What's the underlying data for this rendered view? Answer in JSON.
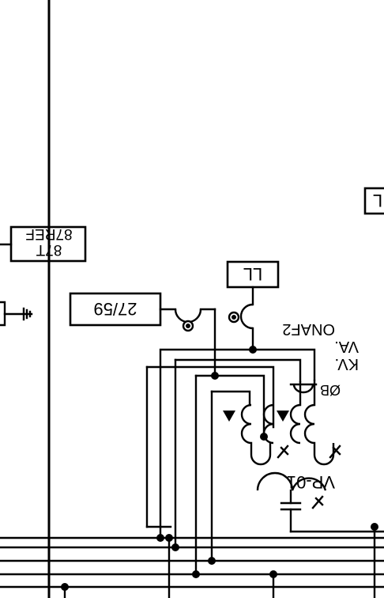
{
  "labels": {
    "relay_87t": "87T",
    "relay_87ref": "87REF",
    "relay_2759": "27/59",
    "relay_ll_top": "LL",
    "relay_l_edge": "L",
    "phase_b": "ØB",
    "edge_text_1": "ONAF2",
    "edge_text_2": "VA.",
    "edge_text_3": "KV.",
    "edge_text_4": "VP-01"
  },
  "colors": {
    "line": "#000000",
    "background": "#ffffff"
  }
}
